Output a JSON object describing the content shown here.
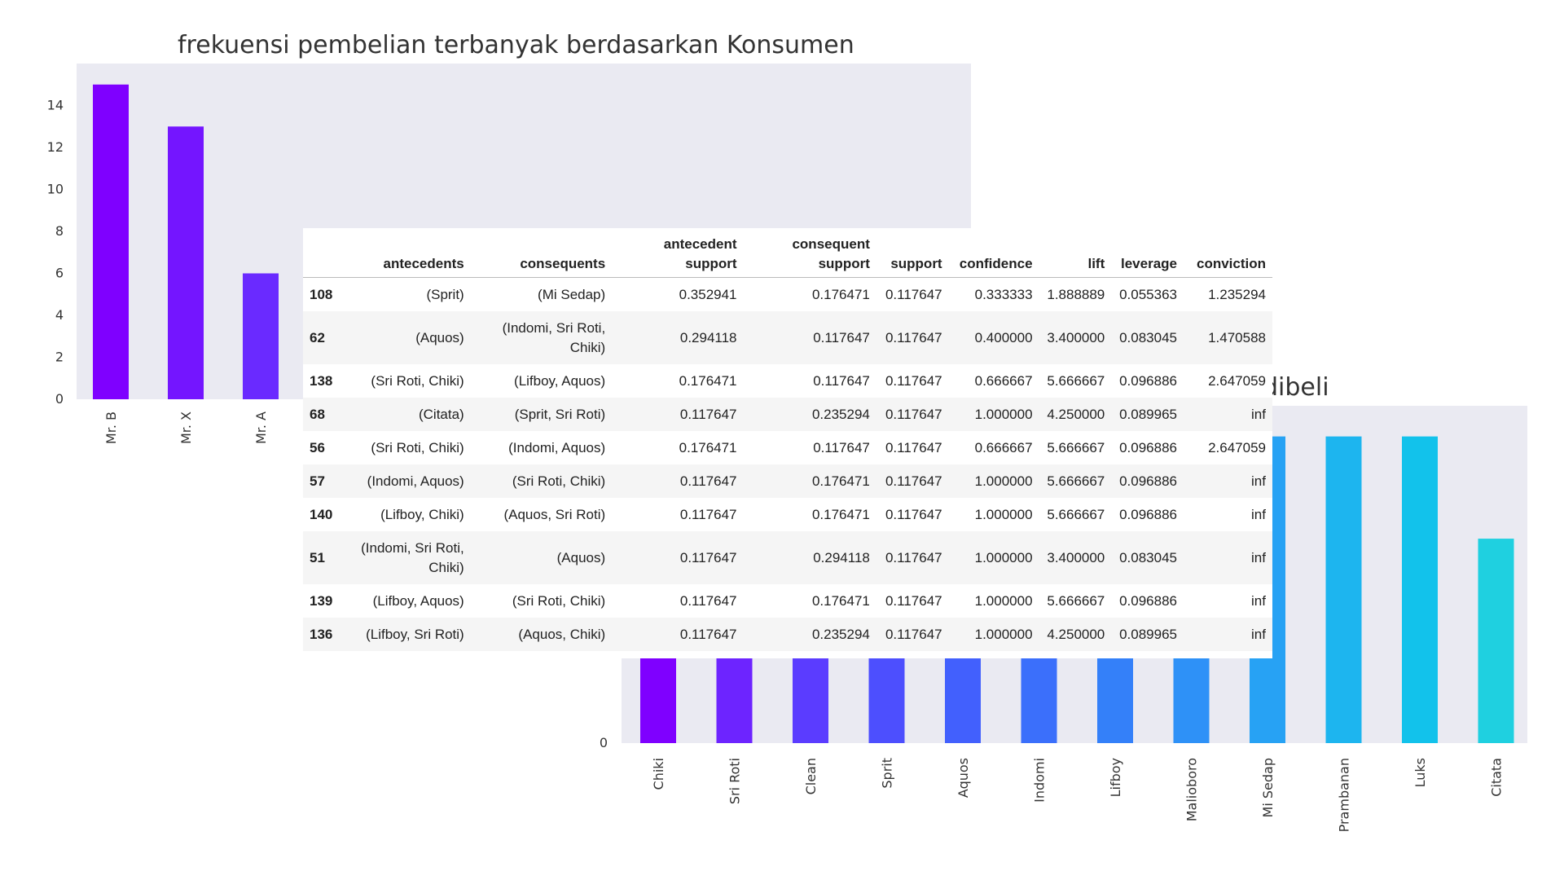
{
  "charts": {
    "consumer": {
      "title": "frekuensi pembelian terbanyak berdasarkan Konsumen"
    },
    "items": {
      "title": "dibeli"
    }
  },
  "chart_data": [
    {
      "type": "bar",
      "title": "frekuensi pembelian terbanyak berdasarkan Konsumen",
      "categories": [
        "Mr. B",
        "Mr. X",
        "Mr. A"
      ],
      "values": [
        15,
        13,
        6
      ],
      "ylim": [
        0,
        16
      ],
      "yticks": [
        0,
        2,
        4,
        6,
        8,
        10,
        12,
        14
      ],
      "grid": false,
      "colors": [
        "#7f00ff",
        "#7415ff",
        "#6a2aff"
      ]
    },
    {
      "type": "bar",
      "title": "dibeli",
      "categories": [
        "Chiki",
        "Sri Roti",
        "Clean",
        "Sprit",
        "Aquos",
        "Indomi",
        "Lifboy",
        "Malioboro",
        "Mi Sedap",
        "Prambanan",
        "Luks",
        "Citata"
      ],
      "values": [
        3,
        3,
        3,
        3,
        3,
        3,
        3,
        3,
        3,
        3,
        3,
        2
      ],
      "ylim": [
        0,
        3.3
      ],
      "yticks": [
        0,
        1
      ],
      "grid": false,
      "colors": [
        "#7f00ff",
        "#6d24ff",
        "#5b3cff",
        "#4d4ffe",
        "#4260fd",
        "#3b6ffb",
        "#3480f9",
        "#2e91f7",
        "#27a2f4",
        "#1db5ef",
        "#12c2eb",
        "#1fd0e0"
      ]
    }
  ],
  "table": {
    "headers": [
      "",
      "antecedents",
      "consequents",
      "antecedent support",
      "consequent support",
      "support",
      "confidence",
      "lift",
      "leverage",
      "conviction"
    ],
    "rows": [
      [
        "108",
        "(Sprit)",
        "(Mi Sedap)",
        "0.352941",
        "0.176471",
        "0.117647",
        "0.333333",
        "1.888889",
        "0.055363",
        "1.235294"
      ],
      [
        "62",
        "(Aquos)",
        "(Indomi, Sri Roti, Chiki)",
        "0.294118",
        "0.117647",
        "0.117647",
        "0.400000",
        "3.400000",
        "0.083045",
        "1.470588"
      ],
      [
        "138",
        "(Sri Roti, Chiki)",
        "(Lifboy, Aquos)",
        "0.176471",
        "0.117647",
        "0.117647",
        "0.666667",
        "5.666667",
        "0.096886",
        "2.647059"
      ],
      [
        "68",
        "(Citata)",
        "(Sprit, Sri Roti)",
        "0.117647",
        "0.235294",
        "0.117647",
        "1.000000",
        "4.250000",
        "0.089965",
        "inf"
      ],
      [
        "56",
        "(Sri Roti, Chiki)",
        "(Indomi, Aquos)",
        "0.176471",
        "0.117647",
        "0.117647",
        "0.666667",
        "5.666667",
        "0.096886",
        "2.647059"
      ],
      [
        "57",
        "(Indomi, Aquos)",
        "(Sri Roti, Chiki)",
        "0.117647",
        "0.176471",
        "0.117647",
        "1.000000",
        "5.666667",
        "0.096886",
        "inf"
      ],
      [
        "140",
        "(Lifboy, Chiki)",
        "(Aquos, Sri Roti)",
        "0.117647",
        "0.176471",
        "0.117647",
        "1.000000",
        "5.666667",
        "0.096886",
        "inf"
      ],
      [
        "51",
        "(Indomi, Sri Roti, Chiki)",
        "(Aquos)",
        "0.117647",
        "0.294118",
        "0.117647",
        "1.000000",
        "3.400000",
        "0.083045",
        "inf"
      ],
      [
        "139",
        "(Lifboy, Aquos)",
        "(Sri Roti, Chiki)",
        "0.117647",
        "0.176471",
        "0.117647",
        "1.000000",
        "5.666667",
        "0.096886",
        "inf"
      ],
      [
        "136",
        "(Lifboy, Sri Roti)",
        "(Aquos, Chiki)",
        "0.117647",
        "0.235294",
        "0.117647",
        "1.000000",
        "4.250000",
        "0.089965",
        "inf"
      ]
    ]
  }
}
